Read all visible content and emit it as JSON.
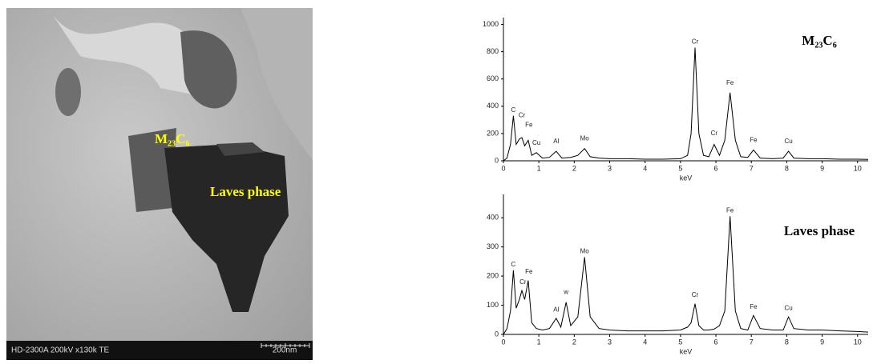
{
  "image": {
    "caption": "HD-2300A 200kV x130k TE",
    "scale_label": "200nm",
    "labels": [
      "M₂₃C₆",
      "Laves phase"
    ]
  },
  "chart_data": [
    {
      "type": "line",
      "label": "M₂₃C₆",
      "x_label": "keV",
      "color": "#000000",
      "xlim": [
        0,
        10.3
      ],
      "xticks": [
        0,
        1,
        2,
        3,
        4,
        5,
        6,
        7,
        8,
        9,
        10
      ],
      "ylim": [
        0,
        1050
      ],
      "yticks": [
        0,
        200,
        400,
        600,
        800,
        1000
      ],
      "x": [
        0,
        0.1,
        0.2,
        0.28,
        0.36,
        0.45,
        0.52,
        0.6,
        0.7,
        0.8,
        0.93,
        1.1,
        1.3,
        1.49,
        1.65,
        1.9,
        2.1,
        2.29,
        2.45,
        2.7,
        3,
        3.5,
        4,
        4.5,
        5,
        5.2,
        5.3,
        5.41,
        5.52,
        5.65,
        5.8,
        5.95,
        6.1,
        6.25,
        6.4,
        6.55,
        6.7,
        6.9,
        7.06,
        7.25,
        7.6,
        7.9,
        8.05,
        8.2,
        8.6,
        9,
        9.5,
        10,
        10.3
      ],
      "values": [
        0,
        20,
        120,
        330,
        120,
        160,
        170,
        110,
        150,
        40,
        60,
        20,
        25,
        70,
        20,
        25,
        40,
        90,
        30,
        20,
        15,
        15,
        12,
        12,
        15,
        40,
        200,
        830,
        200,
        40,
        30,
        120,
        40,
        150,
        500,
        150,
        30,
        25,
        80,
        20,
        15,
        20,
        70,
        20,
        15,
        15,
        12,
        12,
        10
      ],
      "annotations": [
        {
          "text": "C",
          "x": 0.28,
          "y": 330
        },
        {
          "text": "Cr",
          "x": 0.52,
          "y": 290
        },
        {
          "text": "Fe",
          "x": 0.72,
          "y": 220
        },
        {
          "text": "Cu",
          "x": 0.93,
          "y": 90
        },
        {
          "text": "Al",
          "x": 1.49,
          "y": 100
        },
        {
          "text": "Mo",
          "x": 2.29,
          "y": 120
        },
        {
          "text": "Cr",
          "x": 5.41,
          "y": 830
        },
        {
          "text": "Cr",
          "x": 5.95,
          "y": 160
        },
        {
          "text": "Fe",
          "x": 6.4,
          "y": 530
        },
        {
          "text": "Fe",
          "x": 7.06,
          "y": 110
        },
        {
          "text": "Cu",
          "x": 8.05,
          "y": 100
        }
      ]
    },
    {
      "type": "line",
      "label": "Laves phase",
      "x_label": "keV",
      "color": "#000000",
      "xlim": [
        0,
        10.3
      ],
      "xticks": [
        0,
        1,
        2,
        3,
        4,
        5,
        6,
        7,
        8,
        9,
        10
      ],
      "ylim": [
        0,
        480
      ],
      "yticks": [
        0,
        100,
        200,
        300,
        400
      ],
      "x": [
        0,
        0.1,
        0.2,
        0.28,
        0.36,
        0.45,
        0.52,
        0.6,
        0.7,
        0.8,
        0.93,
        1.1,
        1.3,
        1.49,
        1.62,
        1.77,
        1.9,
        2.1,
        2.29,
        2.45,
        2.7,
        3,
        3.5,
        4,
        4.5,
        5,
        5.2,
        5.3,
        5.41,
        5.52,
        5.65,
        5.8,
        5.95,
        6.1,
        6.25,
        6.4,
        6.55,
        6.7,
        6.9,
        7.06,
        7.25,
        7.6,
        7.9,
        8.05,
        8.2,
        8.6,
        9,
        9.5,
        10,
        10.3
      ],
      "values": [
        0,
        20,
        80,
        220,
        90,
        120,
        150,
        120,
        185,
        40,
        20,
        15,
        20,
        55,
        25,
        110,
        30,
        60,
        265,
        60,
        20,
        15,
        12,
        12,
        12,
        15,
        25,
        40,
        105,
        30,
        15,
        15,
        18,
        30,
        80,
        405,
        80,
        20,
        15,
        65,
        20,
        15,
        15,
        60,
        20,
        15,
        15,
        12,
        10,
        8
      ],
      "annotations": [
        {
          "text": "C",
          "x": 0.28,
          "y": 220
        },
        {
          "text": "Cr",
          "x": 0.55,
          "y": 160
        },
        {
          "text": "Fe",
          "x": 0.72,
          "y": 195
        },
        {
          "text": "Al",
          "x": 1.49,
          "y": 65
        },
        {
          "text": "w",
          "x": 1.77,
          "y": 125
        },
        {
          "text": "Mo",
          "x": 2.29,
          "y": 265
        },
        {
          "text": "Cr",
          "x": 5.41,
          "y": 115
        },
        {
          "text": "Fe",
          "x": 6.4,
          "y": 405
        },
        {
          "text": "Fe",
          "x": 7.06,
          "y": 75
        },
        {
          "text": "Cu",
          "x": 8.05,
          "y": 70
        }
      ]
    }
  ]
}
